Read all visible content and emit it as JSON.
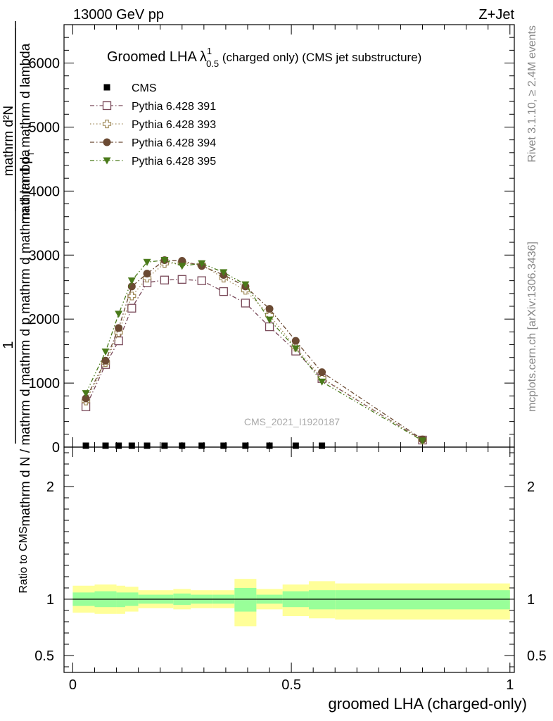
{
  "header": {
    "left": "13000 GeV pp",
    "right": "Z+Jet"
  },
  "side_labels": {
    "rivet": "Rivet 3.1.10, ≥ 2.4M events",
    "mcplots": "mcplots.cern.ch [arXiv:1306.3436]"
  },
  "watermark": "CMS_2021_I1920187",
  "chart_data": [
    {
      "type": "scatter",
      "title": {
        "main": "Groomed LHA",
        "lambda": "λ",
        "sup": "1",
        "sub": "0.5",
        "rest": " (charged only) (CMS jet substructure)"
      },
      "ylabel": {
        "numerator": "mathrm d²N",
        "denominator": "mathrm d p",
        "sub_T": "T",
        "denominator_rest": " mathrm d lambda",
        "outer_num": "1",
        "outer_den": "mathrm d N / mathrm d mathrm d p",
        "outer_den_rest": " mathrm d mathrm d lambda"
      },
      "xlim": [
        -0.02,
        1.01
      ],
      "ylim": [
        0,
        6600
      ],
      "y_ticks": [
        0,
        1000,
        2000,
        3000,
        4000,
        5000,
        6000
      ],
      "y_tick_labels": [
        "0",
        "1000",
        "2000",
        "3000",
        "4000",
        "5000",
        "6000"
      ],
      "legend_position": "top-left",
      "series": [
        {
          "name": "CMS",
          "marker": "filled-square",
          "color": "#000000",
          "x": [
            0.03,
            0.075,
            0.105,
            0.135,
            0.17,
            0.21,
            0.25,
            0.295,
            0.345,
            0.395,
            0.45,
            0.51,
            0.57
          ],
          "values": [
            0,
            0,
            0,
            0,
            0,
            0,
            0,
            0,
            0,
            0,
            0,
            0,
            0
          ]
        },
        {
          "name": "Pythia 6.428 391",
          "marker": "open-square",
          "color": "#7a4a5a",
          "dash": "6,3,1.5,3",
          "x": [
            0.03,
            0.075,
            0.105,
            0.135,
            0.17,
            0.21,
            0.25,
            0.295,
            0.345,
            0.395,
            0.45,
            0.51,
            0.57,
            0.8
          ],
          "values": [
            630,
            1290,
            1660,
            2170,
            2570,
            2610,
            2620,
            2600,
            2430,
            2250,
            1880,
            1500,
            1070,
            110
          ]
        },
        {
          "name": "Pythia 6.428 393",
          "marker": "open-cross",
          "color": "#a08a5a",
          "dash": "1.5,3",
          "x": [
            0.03,
            0.075,
            0.105,
            0.135,
            0.17,
            0.21,
            0.25,
            0.295,
            0.345,
            0.395,
            0.45,
            0.51,
            0.57,
            0.8
          ],
          "values": [
            720,
            1320,
            1790,
            2360,
            2640,
            2870,
            2880,
            2850,
            2640,
            2450,
            2060,
            1560,
            1080,
            110
          ]
        },
        {
          "name": "Pythia 6.428 394",
          "marker": "filled-circle",
          "color": "#6b4a33",
          "dash": "6,3,1.5,3",
          "x": [
            0.03,
            0.075,
            0.105,
            0.135,
            0.17,
            0.21,
            0.25,
            0.295,
            0.345,
            0.395,
            0.45,
            0.51,
            0.57,
            0.8
          ],
          "values": [
            760,
            1350,
            1860,
            2510,
            2710,
            2920,
            2910,
            2830,
            2690,
            2510,
            2160,
            1660,
            1170,
            120
          ]
        },
        {
          "name": "Pythia 6.428 395",
          "marker": "filled-triangle-down",
          "color": "#4a7a1a",
          "dash": "6,3,1.5,3,1.5,3",
          "x": [
            0.03,
            0.075,
            0.105,
            0.135,
            0.17,
            0.21,
            0.25,
            0.295,
            0.345,
            0.395,
            0.45,
            0.51,
            0.57,
            0.8
          ],
          "values": [
            840,
            1490,
            2080,
            2600,
            2890,
            2920,
            2830,
            2870,
            2730,
            2540,
            1990,
            1540,
            1020,
            100
          ]
        }
      ]
    },
    {
      "type": "area",
      "ylabel": "Ratio to CMS",
      "xlabel": "groomed LHA (charged-only)",
      "xlim": [
        -0.02,
        1.01
      ],
      "ylim": [
        0.35,
        2.35
      ],
      "x_ticks": [
        0,
        0.5,
        1
      ],
      "x_tick_labels": [
        "0",
        "0.5",
        "1"
      ],
      "y_ticks": [
        0.5,
        1,
        2
      ],
      "y_tick_labels": [
        "0.5",
        "1",
        "2"
      ],
      "reference_line": 1,
      "band_colors": {
        "inner": "#99ff99",
        "outer": "#ffff99"
      },
      "bins": [
        {
          "lo": 0.0,
          "hi": 0.05,
          "outer_lo": 0.88,
          "outer_hi": 1.12,
          "inner_lo": 0.94,
          "inner_hi": 1.06
        },
        {
          "lo": 0.05,
          "hi": 0.1,
          "outer_lo": 0.87,
          "outer_hi": 1.13,
          "inner_lo": 0.93,
          "inner_hi": 1.07
        },
        {
          "lo": 0.1,
          "hi": 0.12,
          "outer_lo": 0.87,
          "outer_hi": 1.12,
          "inner_lo": 0.93,
          "inner_hi": 1.06
        },
        {
          "lo": 0.12,
          "hi": 0.15,
          "outer_lo": 0.89,
          "outer_hi": 1.11,
          "inner_lo": 0.94,
          "inner_hi": 1.06
        },
        {
          "lo": 0.15,
          "hi": 0.19,
          "outer_lo": 0.92,
          "outer_hi": 1.08,
          "inner_lo": 0.96,
          "inner_hi": 1.04
        },
        {
          "lo": 0.19,
          "hi": 0.23,
          "outer_lo": 0.92,
          "outer_hi": 1.08,
          "inner_lo": 0.96,
          "inner_hi": 1.04
        },
        {
          "lo": 0.23,
          "hi": 0.27,
          "outer_lo": 0.91,
          "outer_hi": 1.09,
          "inner_lo": 0.95,
          "inner_hi": 1.05
        },
        {
          "lo": 0.27,
          "hi": 0.32,
          "outer_lo": 0.92,
          "outer_hi": 1.08,
          "inner_lo": 0.96,
          "inner_hi": 1.04
        },
        {
          "lo": 0.32,
          "hi": 0.37,
          "outer_lo": 0.92,
          "outer_hi": 1.08,
          "inner_lo": 0.96,
          "inner_hi": 1.04
        },
        {
          "lo": 0.37,
          "hi": 0.42,
          "outer_lo": 0.76,
          "outer_hi": 1.18,
          "inner_lo": 0.89,
          "inner_hi": 1.1
        },
        {
          "lo": 0.42,
          "hi": 0.48,
          "outer_lo": 0.91,
          "outer_hi": 1.09,
          "inner_lo": 0.96,
          "inner_hi": 1.04
        },
        {
          "lo": 0.48,
          "hi": 0.54,
          "outer_lo": 0.85,
          "outer_hi": 1.13,
          "inner_lo": 0.93,
          "inner_hi": 1.07
        },
        {
          "lo": 0.54,
          "hi": 0.6,
          "outer_lo": 0.83,
          "outer_hi": 1.16,
          "inner_lo": 0.91,
          "inner_hi": 1.08
        },
        {
          "lo": 0.6,
          "hi": 1.0,
          "outer_lo": 0.82,
          "outer_hi": 1.14,
          "inner_lo": 0.91,
          "inner_hi": 1.08
        }
      ]
    }
  ]
}
